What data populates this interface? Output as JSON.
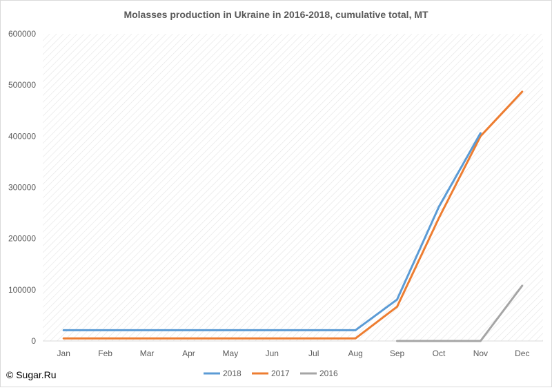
{
  "chart_data": {
    "type": "line",
    "title": "Molasses production in Ukraine in 2016-2018, cumulative total, MT",
    "xlabel": "",
    "ylabel": "",
    "categories": [
      "Jan",
      "Feb",
      "Mar",
      "Apr",
      "May",
      "Jun",
      "Jul",
      "Aug",
      "Sep",
      "Oct",
      "Nov",
      "Dec"
    ],
    "ylim": [
      0,
      600000
    ],
    "yticks": [
      0,
      100000,
      200000,
      300000,
      400000,
      500000,
      600000
    ],
    "grid": false,
    "background_pattern": "diagonal-hatch",
    "legend_position": "bottom",
    "series": [
      {
        "name": "2018",
        "color": "#5b9bd5",
        "values": [
          21000,
          21000,
          21000,
          21000,
          21000,
          21000,
          21000,
          21000,
          81000,
          262000,
          406000,
          null
        ]
      },
      {
        "name": "2017",
        "color": "#ed7d31",
        "values": [
          5000,
          5000,
          5000,
          5000,
          5000,
          5000,
          5000,
          5000,
          67000,
          240000,
          400000,
          487000
        ]
      },
      {
        "name": "2016",
        "color": "#a5a5a5",
        "values": [
          null,
          null,
          null,
          null,
          null,
          null,
          null,
          null,
          0,
          0,
          0,
          108000
        ]
      }
    ]
  },
  "copyright": "© Sugar.Ru"
}
